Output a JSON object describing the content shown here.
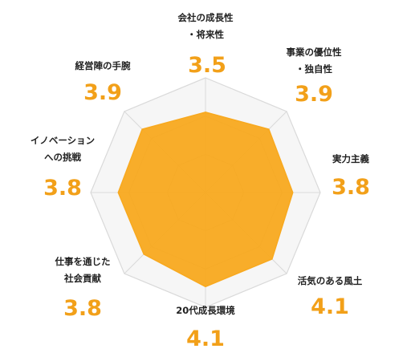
{
  "chart_data": {
    "type": "radar",
    "max_value": 5,
    "grid_levels": 3,
    "axes": [
      {
        "label": "会社の成長性\n・将来性",
        "value": 3.5,
        "value_text": "3.5"
      },
      {
        "label": "事業の優位性\n・独自性",
        "value": 3.9,
        "value_text": "3.9"
      },
      {
        "label": "実力主義",
        "value": 3.8,
        "value_text": "3.8"
      },
      {
        "label": "活気のある風土",
        "value": 4.1,
        "value_text": "4.1"
      },
      {
        "label": "20代成長環境",
        "value": 4.1,
        "value_text": "4.1"
      },
      {
        "label": "仕事を通じた\n社会貢献",
        "value": 3.8,
        "value_text": "3.8"
      },
      {
        "label": "イノベーション\nへの挑戦",
        "value": 3.8,
        "value_text": "3.8"
      },
      {
        "label": "経営陣の手腕",
        "value": 3.9,
        "value_text": "3.9"
      }
    ],
    "colors": {
      "fill": "#f8a91f",
      "grid_fill": "#f6f6f6",
      "grid_line": "#d9d9d9",
      "value_text": "#f2a019"
    }
  }
}
